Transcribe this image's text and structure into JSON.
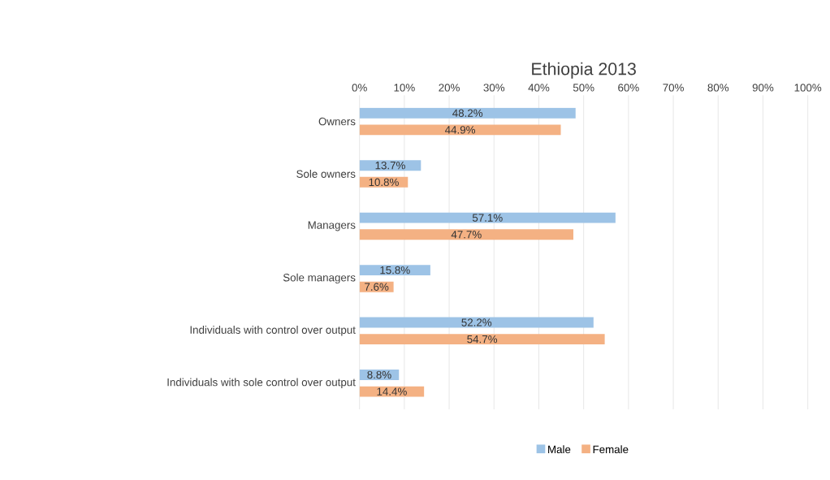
{
  "chart_data": {
    "type": "bar",
    "orientation": "horizontal",
    "title": "Ethiopia 2013",
    "categories": [
      "Owners",
      "Sole owners",
      "Managers",
      "Sole managers",
      "Individuals with control over output",
      "Individuals with sole control over output"
    ],
    "series": [
      {
        "name": "Male",
        "color": "#9dc3e6",
        "values": [
          48.2,
          13.7,
          57.1,
          15.8,
          52.2,
          8.8
        ],
        "value_labels": [
          "48.2%",
          "13.7%",
          "57.1%",
          "15.8%",
          "52.2%",
          "8.8%"
        ]
      },
      {
        "name": "Female",
        "color": "#f4b183",
        "values": [
          44.9,
          10.8,
          47.7,
          7.6,
          54.7,
          14.4
        ],
        "value_labels": [
          "44.9%",
          "10.8%",
          "47.7%",
          "7.6%",
          "54.7%",
          "14.4%"
        ]
      }
    ],
    "xlim": [
      0,
      100
    ],
    "xticks": [
      {
        "value": 0,
        "label": "0%"
      },
      {
        "value": 10,
        "label": "10%"
      },
      {
        "value": 20,
        "label": "20%"
      },
      {
        "value": 30,
        "label": "30%"
      },
      {
        "value": 40,
        "label": "40%"
      },
      {
        "value": 50,
        "label": "50%"
      },
      {
        "value": 60,
        "label": "60%"
      },
      {
        "value": 70,
        "label": "70%"
      },
      {
        "value": 80,
        "label": "80%"
      },
      {
        "value": 90,
        "label": "90%"
      },
      {
        "value": 100,
        "label": "100%"
      }
    ],
    "grid": "x",
    "legend": "bottom"
  }
}
